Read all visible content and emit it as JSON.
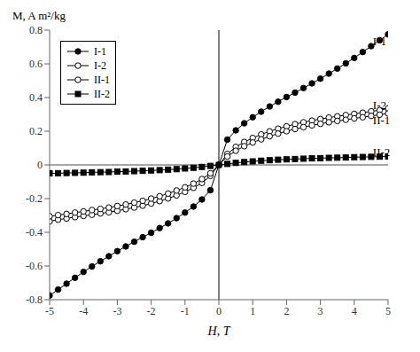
{
  "chart_data": {
    "type": "line",
    "title": "",
    "xlabel": "H, T",
    "ylabel": "M, A m²/kg",
    "xlim": [
      -5,
      5
    ],
    "ylim": [
      -0.8,
      0.8
    ],
    "xticks": [
      -5,
      -4,
      -3,
      -2,
      -1,
      0,
      1,
      2,
      3,
      4,
      5
    ],
    "yticks": [
      -0.8,
      -0.6,
      -0.4,
      -0.2,
      0,
      0.2,
      0.4,
      0.6,
      0.8
    ],
    "grid": false,
    "legend": "upper left",
    "vlines": [
      0
    ],
    "hlines": [
      0
    ],
    "x": [
      -5.0,
      -4.75,
      -4.5,
      -4.25,
      -4.0,
      -3.75,
      -3.5,
      -3.25,
      -3.0,
      -2.75,
      -2.5,
      -2.25,
      -2.0,
      -1.75,
      -1.5,
      -1.25,
      -1.0,
      -0.75,
      -0.5,
      -0.25,
      0.0,
      0.25,
      0.5,
      0.75,
      1.0,
      1.25,
      1.5,
      1.75,
      2.0,
      2.25,
      2.5,
      2.75,
      3.0,
      3.25,
      3.5,
      3.75,
      4.0,
      4.25,
      4.5,
      4.75,
      5.0
    ],
    "series": [
      {
        "name": "I-1",
        "color": "#000000",
        "marker": "filled_circle",
        "values": [
          -0.775,
          -0.74,
          -0.705,
          -0.67,
          -0.635,
          -0.603,
          -0.572,
          -0.542,
          -0.512,
          -0.484,
          -0.456,
          -0.429,
          -0.403,
          -0.375,
          -0.347,
          -0.316,
          -0.283,
          -0.247,
          -0.205,
          -0.15,
          0.0,
          0.15,
          0.205,
          0.247,
          0.283,
          0.316,
          0.347,
          0.375,
          0.403,
          0.429,
          0.456,
          0.484,
          0.512,
          0.542,
          0.572,
          0.603,
          0.635,
          0.67,
          0.705,
          0.74,
          0.775
        ]
      },
      {
        "name": "I-2",
        "color": "#000000",
        "marker": "open_circle",
        "values": [
          -0.335,
          -0.325,
          -0.318,
          -0.31,
          -0.303,
          -0.296,
          -0.288,
          -0.281,
          -0.272,
          -0.263,
          -0.253,
          -0.242,
          -0.229,
          -0.215,
          -0.199,
          -0.181,
          -0.16,
          -0.136,
          -0.107,
          -0.065,
          0.0,
          0.065,
          0.107,
          0.136,
          0.16,
          0.181,
          0.199,
          0.215,
          0.229,
          0.242,
          0.253,
          0.263,
          0.272,
          0.281,
          0.288,
          0.296,
          0.303,
          0.31,
          0.318,
          0.325,
          0.335
        ]
      },
      {
        "name": "II-1",
        "color": "#000000",
        "marker": "open_circle",
        "values": [
          -0.305,
          -0.298,
          -0.291,
          -0.283,
          -0.276,
          -0.268,
          -0.261,
          -0.253,
          -0.244,
          -0.235,
          -0.224,
          -0.213,
          -0.2,
          -0.186,
          -0.17,
          -0.152,
          -0.133,
          -0.111,
          -0.084,
          -0.05,
          0.0,
          0.05,
          0.084,
          0.111,
          0.133,
          0.152,
          0.17,
          0.186,
          0.2,
          0.213,
          0.224,
          0.235,
          0.244,
          0.253,
          0.261,
          0.268,
          0.276,
          0.283,
          0.291,
          0.298,
          0.305
        ]
      },
      {
        "name": "II-2",
        "color": "#000000",
        "marker": "filled_square",
        "values": [
          -0.05,
          -0.049,
          -0.048,
          -0.047,
          -0.046,
          -0.044,
          -0.043,
          -0.042,
          -0.04,
          -0.039,
          -0.037,
          -0.035,
          -0.033,
          -0.031,
          -0.028,
          -0.025,
          -0.021,
          -0.017,
          -0.012,
          -0.006,
          0.0,
          0.006,
          0.012,
          0.017,
          0.021,
          0.025,
          0.028,
          0.031,
          0.033,
          0.035,
          0.037,
          0.039,
          0.04,
          0.042,
          0.043,
          0.044,
          0.046,
          0.047,
          0.048,
          0.049,
          0.05
        ]
      }
    ],
    "annotations": [
      {
        "text": "I-1",
        "x": 4.55,
        "y": 0.735
      },
      {
        "text": "I-2",
        "x": 4.55,
        "y": 0.355
      },
      {
        "text": "II-1",
        "x": 4.55,
        "y": 0.265
      },
      {
        "text": "II-2",
        "x": 4.55,
        "y": 0.075
      }
    ]
  }
}
